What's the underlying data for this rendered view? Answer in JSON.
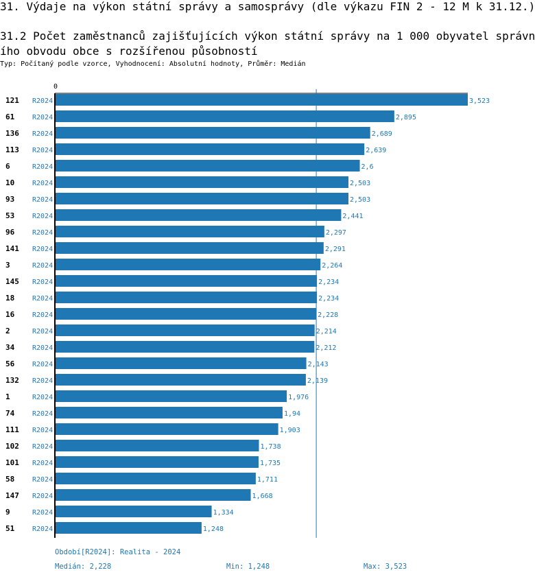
{
  "header": {
    "title": "31. Výdaje na výkon státní správy a samosprávy (dle výkazu FIN 2 - 12 M k 31.12.)",
    "subtitle_line1": "31.2 Počet zaměstnanců zajišťujících výkon státní správy na 1 000 obyvatel správn",
    "subtitle_line2": "ího obvodu obce s rozšířenou působností",
    "info": "Typ: Počítaný podle vzorce, Vyhodnocení: Absolutní hodnoty, Průměr: Medián"
  },
  "chart_data": {
    "type": "bar",
    "orientation": "horizontal",
    "axis_zero_label": "0",
    "xlim": [
      0,
      3.523
    ],
    "median": 2.228,
    "series_label": "R2024",
    "categories": [
      "121",
      "61",
      "136",
      "113",
      "6",
      "10",
      "93",
      "53",
      "96",
      "141",
      "3",
      "145",
      "18",
      "16",
      "2",
      "34",
      "56",
      "132",
      "1",
      "74",
      "111",
      "102",
      "101",
      "58",
      "147",
      "9",
      "51"
    ],
    "values": [
      3.523,
      2.895,
      2.689,
      2.639,
      2.6,
      2.503,
      2.503,
      2.441,
      2.297,
      2.291,
      2.264,
      2.234,
      2.234,
      2.228,
      2.214,
      2.212,
      2.143,
      2.139,
      1.976,
      1.94,
      1.903,
      1.738,
      1.735,
      1.711,
      1.668,
      1.334,
      1.248
    ],
    "value_labels": [
      "3,523",
      "2,895",
      "2,689",
      "2,639",
      "2,6",
      "2,503",
      "2,503",
      "2,441",
      "2,297",
      "2,291",
      "2,264",
      "2,234",
      "2,234",
      "2,228",
      "2,214",
      "2,212",
      "2,143",
      "2,139",
      "1,976",
      "1,94",
      "1,903",
      "1,738",
      "1,735",
      "1,711",
      "1,668",
      "1,334",
      "1,248"
    ],
    "colors": {
      "bar": "#1f77b4",
      "label": "#1f77b4",
      "axis": "#000000"
    }
  },
  "footer": {
    "period": "Období[R2024]: Realita - 2024",
    "median": "Medián: 2,228",
    "min": "Min: 1,248",
    "max": "Max: 3,523"
  }
}
